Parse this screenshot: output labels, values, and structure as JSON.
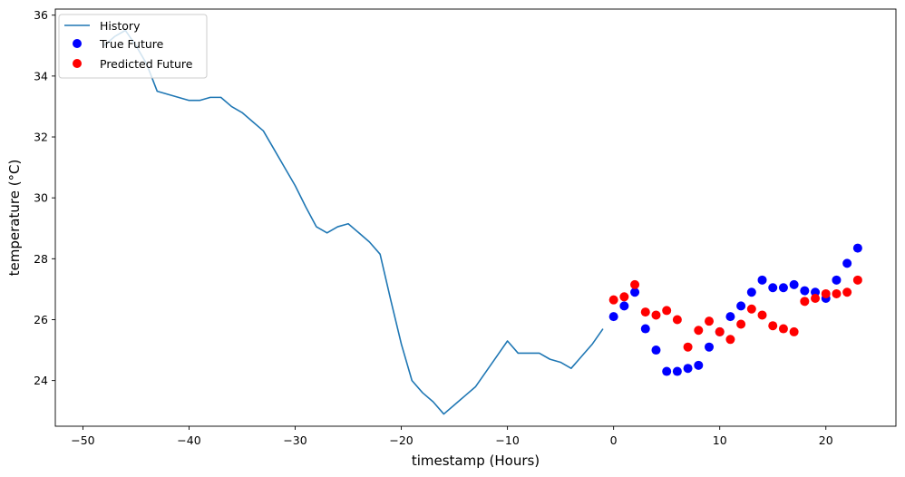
{
  "chart_data": {
    "type": "line",
    "title": "",
    "xlabel": "timestamp (Hours)",
    "ylabel": "temperature (°C)",
    "xlim": [
      -52.6,
      26.6
    ],
    "ylim": [
      22.5,
      36.2
    ],
    "xticks": [
      -50,
      -40,
      -30,
      -20,
      -10,
      0,
      10,
      20
    ],
    "yticks": [
      24,
      26,
      28,
      30,
      32,
      34,
      36
    ],
    "xtick_labels": [
      "−50",
      "−40",
      "−30",
      "−20",
      "−10",
      "0",
      "10",
      "20"
    ],
    "ytick_labels": [
      "24",
      "26",
      "28",
      "30",
      "32",
      "34",
      "36"
    ],
    "grid": false,
    "legend_position": "upper-left",
    "series": [
      {
        "name": "History",
        "kind": "line",
        "color": "#1f77b4",
        "x": [
          -48,
          -47,
          -46,
          -45,
          -44,
          -43,
          -42,
          -41,
          -40,
          -39,
          -38,
          -37,
          -36,
          -35,
          -34,
          -33,
          -32,
          -31,
          -30,
          -29,
          -28,
          -27,
          -26,
          -25,
          -24,
          -23,
          -22,
          -21,
          -20,
          -19,
          -18,
          -17,
          -16,
          -15,
          -14,
          -13,
          -12,
          -11,
          -10,
          -9,
          -8,
          -7,
          -6,
          -5,
          -4,
          -3,
          -2,
          -1
        ],
        "y": [
          35.0,
          35.3,
          35.5,
          35.0,
          34.4,
          33.5,
          33.4,
          33.3,
          33.2,
          33.2,
          33.3,
          33.3,
          33.0,
          32.8,
          32.5,
          32.2,
          31.6,
          31.0,
          30.4,
          29.7,
          29.05,
          28.85,
          29.05,
          29.15,
          28.85,
          28.55,
          28.15,
          26.65,
          25.2,
          24.0,
          23.6,
          23.3,
          22.9,
          23.2,
          23.5,
          23.8,
          24.3,
          24.8,
          25.3,
          24.9,
          24.9,
          24.9,
          24.7,
          24.6,
          24.4,
          24.8,
          25.2,
          25.7
        ]
      },
      {
        "name": "True Future",
        "kind": "scatter",
        "color": "#0000ff",
        "x": [
          0,
          1,
          2,
          3,
          4,
          5,
          6,
          7,
          8,
          9,
          10,
          11,
          12,
          13,
          14,
          15,
          16,
          17,
          18,
          19,
          20,
          21,
          22,
          23
        ],
        "y": [
          26.1,
          26.45,
          26.9,
          25.7,
          25.0,
          24.3,
          24.3,
          24.4,
          24.5,
          25.1,
          25.6,
          26.1,
          26.45,
          26.9,
          27.3,
          27.05,
          27.05,
          27.15,
          26.95,
          26.9,
          26.7,
          27.3,
          27.85,
          28.35
        ]
      },
      {
        "name": "Predicted Future",
        "kind": "scatter",
        "color": "#ff0000",
        "x": [
          0,
          1,
          2,
          3,
          4,
          5,
          6,
          7,
          8,
          9,
          10,
          11,
          12,
          13,
          14,
          15,
          16,
          17,
          18,
          19,
          20,
          21,
          22,
          23
        ],
        "y": [
          26.65,
          26.75,
          27.15,
          26.25,
          26.15,
          26.3,
          26.0,
          25.1,
          25.65,
          25.95,
          25.6,
          25.35,
          25.85,
          26.35,
          26.15,
          25.8,
          25.7,
          25.6,
          26.6,
          26.7,
          26.85,
          26.85,
          26.9,
          27.3
        ]
      }
    ]
  }
}
